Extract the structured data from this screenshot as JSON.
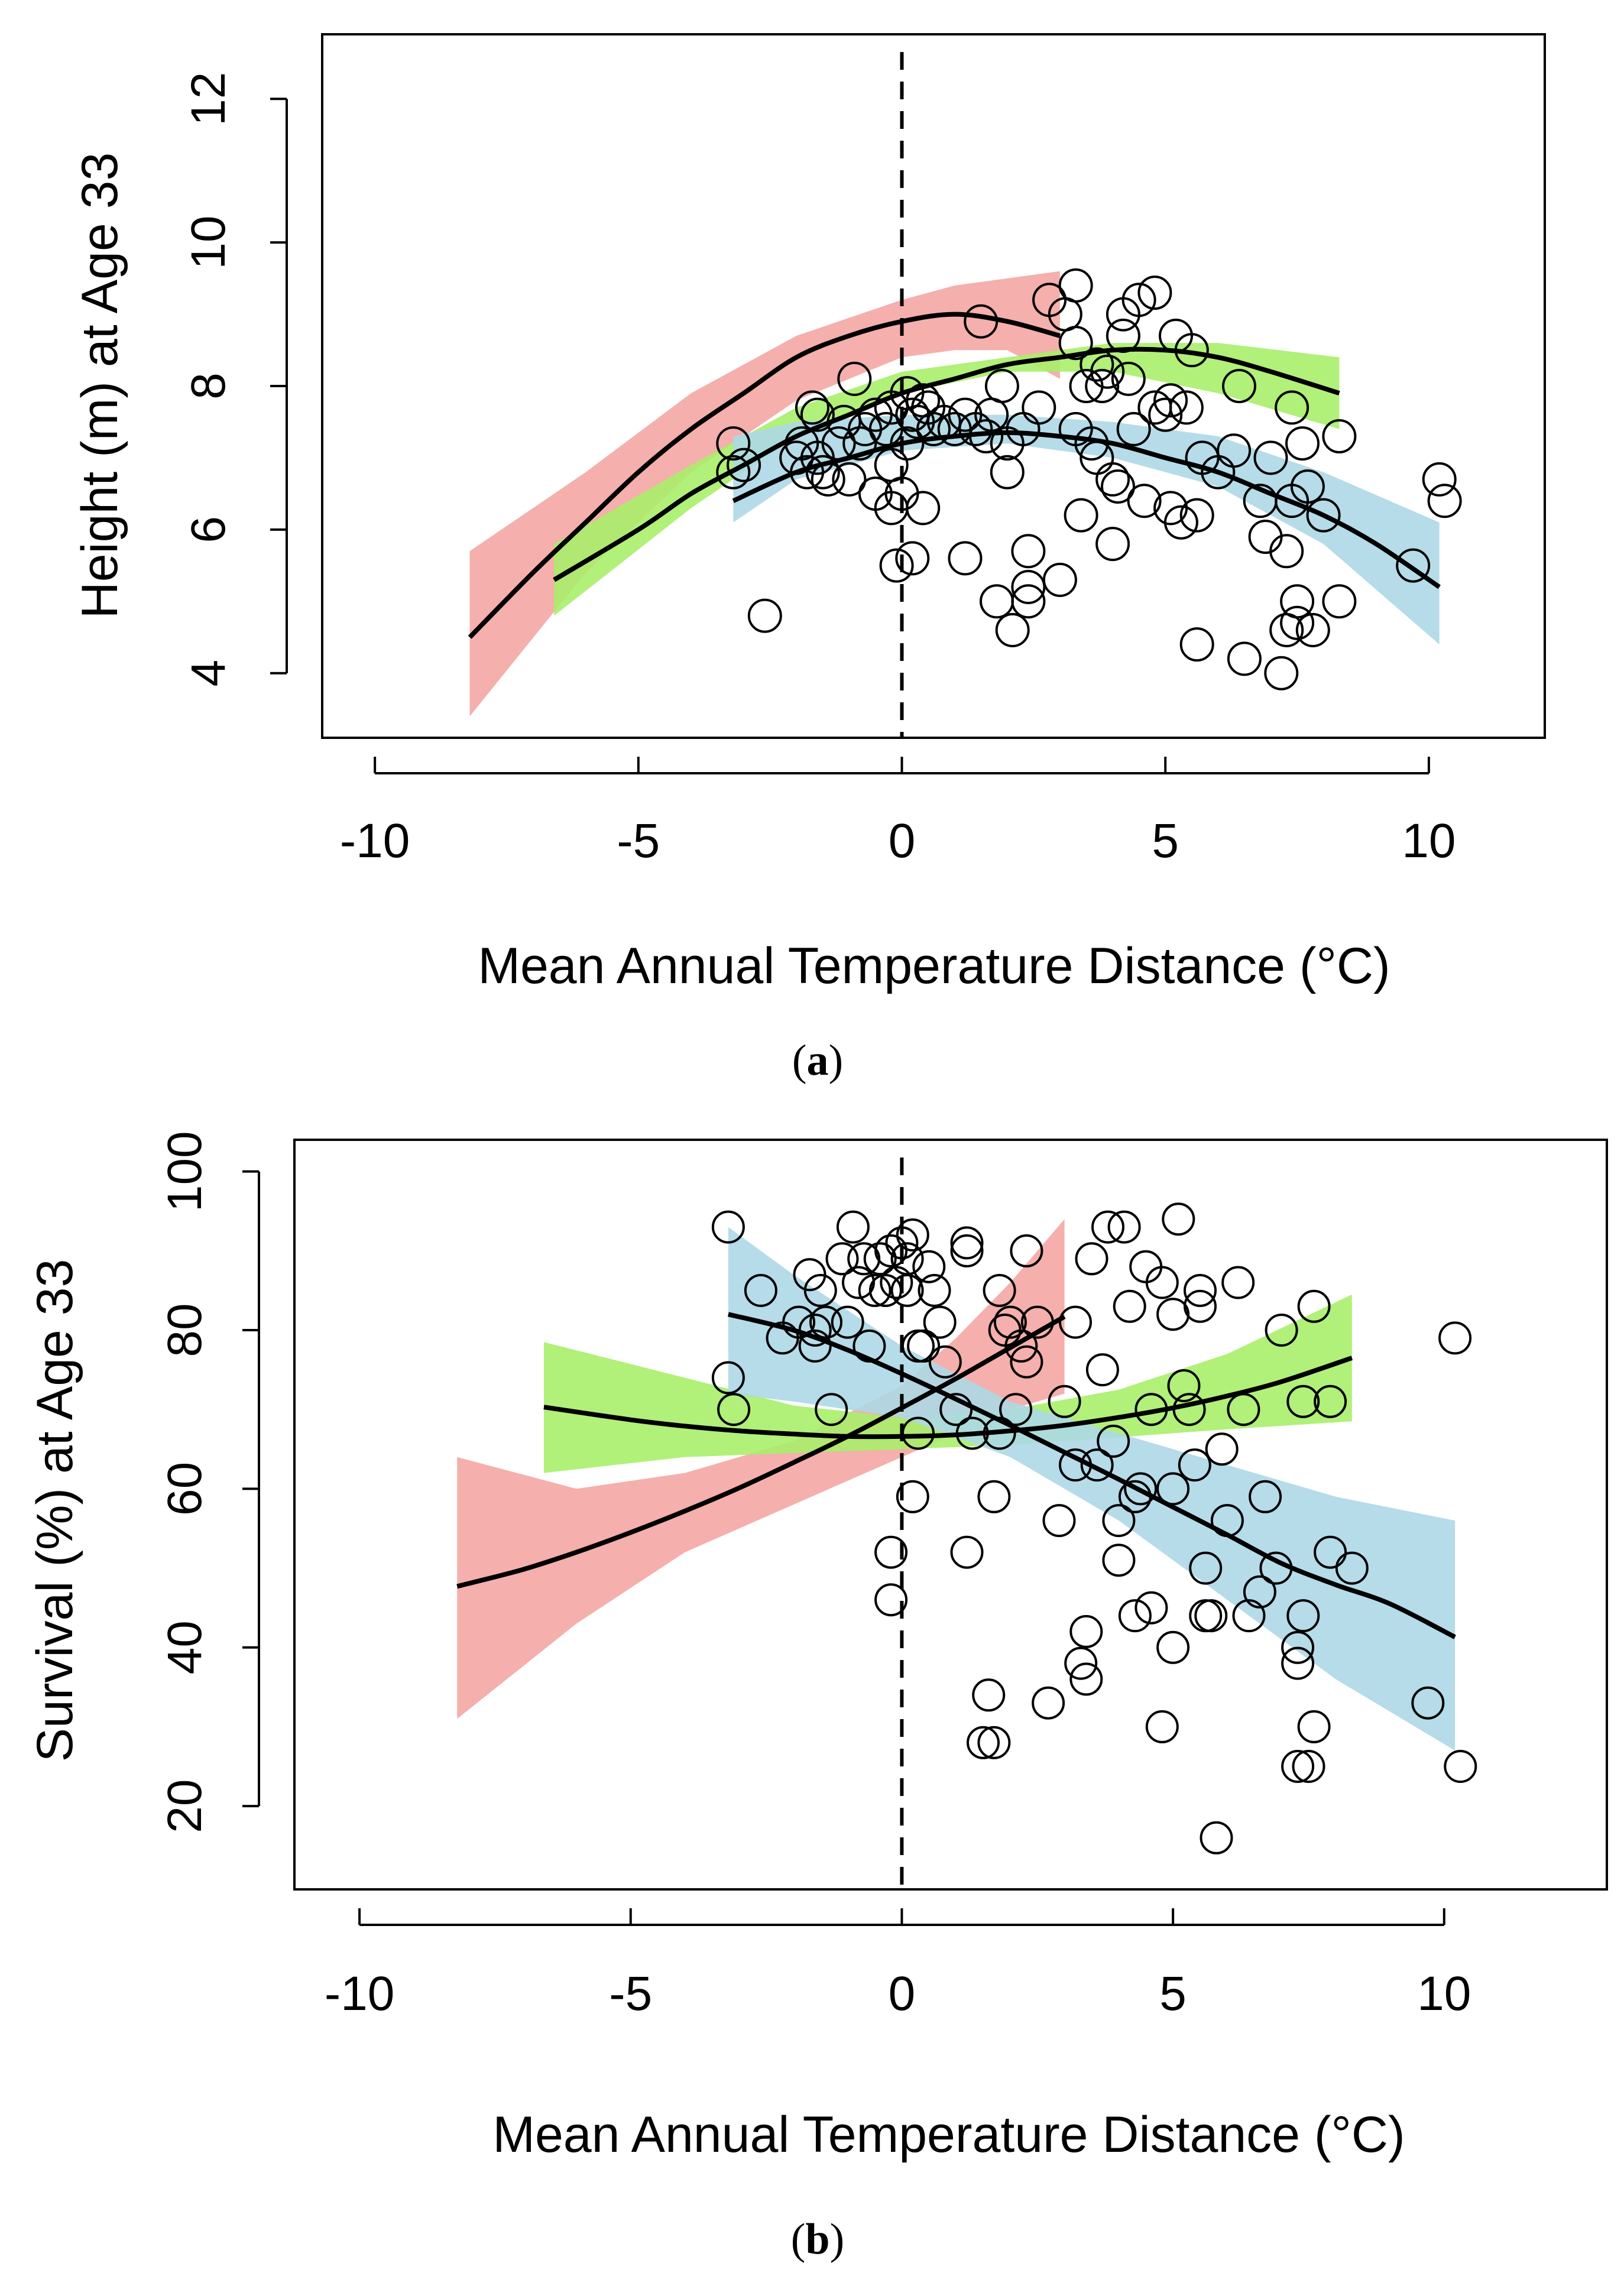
{
  "chart_data": [
    {
      "id": "a",
      "type": "scatter",
      "panel_label": "a",
      "xlabel": "Mean Annual Temperature Distance (°C)",
      "ylabel": "Height (m) at Age 33",
      "xlim": [
        -11,
        12.2
      ],
      "ylim": [
        3.1,
        12.9
      ],
      "xticks": [
        -10,
        -5,
        0,
        5,
        10
      ],
      "yticks": [
        4,
        6,
        8,
        10,
        12
      ],
      "reference_x": 0,
      "bands": [
        {
          "name": "red",
          "color": "#f4a6a3",
          "x": [
            -8.2,
            -6,
            -4,
            -2,
            0,
            1,
            2,
            3
          ],
          "lower": [
            3.4,
            5.4,
            6.8,
            7.8,
            8.4,
            8.5,
            8.5,
            8.1
          ],
          "upper": [
            5.7,
            6.8,
            7.9,
            8.7,
            9.2,
            9.4,
            9.5,
            9.6
          ]
        },
        {
          "name": "green",
          "color": "#a9ee6a",
          "x": [
            -6.6,
            -4,
            -2,
            0,
            2,
            4,
            6,
            8.3
          ],
          "lower": [
            4.8,
            6.3,
            7.3,
            7.9,
            8.2,
            8.2,
            7.9,
            7.4
          ],
          "upper": [
            5.8,
            6.9,
            7.7,
            8.2,
            8.4,
            8.6,
            8.6,
            8.4
          ]
        },
        {
          "name": "blue",
          "color": "#add8e6",
          "x": [
            -3.2,
            -2,
            0,
            2,
            4,
            6,
            8,
            10.2
          ],
          "lower": [
            6.1,
            6.7,
            7.1,
            7.2,
            7.0,
            6.6,
            5.8,
            4.4
          ],
          "upper": [
            7.3,
            7.5,
            7.6,
            7.6,
            7.5,
            7.3,
            6.8,
            6.1
          ]
        }
      ],
      "fits": [
        {
          "name": "red-fit",
          "x": [
            -8.2,
            -7,
            -6,
            -5,
            -4,
            -3,
            -2,
            -1,
            0,
            1,
            2,
            3
          ],
          "y": [
            4.5,
            5.4,
            6.1,
            6.8,
            7.4,
            7.9,
            8.4,
            8.7,
            8.9,
            9.0,
            8.9,
            8.7
          ]
        },
        {
          "name": "green-fit",
          "x": [
            -6.6,
            -5,
            -4,
            -3,
            -2,
            -1,
            0,
            1,
            2,
            3,
            4,
            5,
            6,
            7,
            8.3
          ],
          "y": [
            5.3,
            6.0,
            6.5,
            6.9,
            7.3,
            7.6,
            7.9,
            8.1,
            8.3,
            8.4,
            8.5,
            8.5,
            8.4,
            8.2,
            7.9
          ]
        },
        {
          "name": "blue-fit",
          "x": [
            -3.2,
            -2,
            -1,
            0,
            1,
            2,
            3,
            4,
            5,
            6,
            7,
            8,
            9,
            10.2
          ],
          "y": [
            6.4,
            6.8,
            7.0,
            7.2,
            7.3,
            7.35,
            7.3,
            7.2,
            7.0,
            6.8,
            6.5,
            6.2,
            5.8,
            5.2
          ]
        }
      ],
      "points": [
        [
          -2.6,
          4.8
        ],
        [
          -3.2,
          7.2
        ],
        [
          -3.2,
          6.8
        ],
        [
          -3.0,
          6.9
        ],
        [
          -2.0,
          7.0
        ],
        [
          -1.9,
          7.2
        ],
        [
          -1.8,
          6.8
        ],
        [
          -1.7,
          7.7
        ],
        [
          -1.6,
          7.6
        ],
        [
          -1.6,
          7.0
        ],
        [
          -1.5,
          6.8
        ],
        [
          -1.4,
          6.7
        ],
        [
          -1.2,
          7.2
        ],
        [
          -1.1,
          7.5
        ],
        [
          -1.0,
          6.7
        ],
        [
          -0.9,
          8.1
        ],
        [
          -0.8,
          7.2
        ],
        [
          -0.7,
          7.4
        ],
        [
          -0.5,
          7.6
        ],
        [
          -0.5,
          6.5
        ],
        [
          -0.3,
          7.4
        ],
        [
          -0.2,
          7.7
        ],
        [
          -0.2,
          6.9
        ],
        [
          -0.2,
          6.3
        ],
        [
          -0.1,
          5.5
        ],
        [
          0,
          6.5
        ],
        [
          0.1,
          7.9
        ],
        [
          0.1,
          7.2
        ],
        [
          0.2,
          7.6
        ],
        [
          0.2,
          5.6
        ],
        [
          0.3,
          7.5
        ],
        [
          0.4,
          7.8
        ],
        [
          0.4,
          6.3
        ],
        [
          0.5,
          7.7
        ],
        [
          0.6,
          7.4
        ],
        [
          0.8,
          7.5
        ],
        [
          1.0,
          7.4
        ],
        [
          1.2,
          7.6
        ],
        [
          1.2,
          5.6
        ],
        [
          1.4,
          7.4
        ],
        [
          1.5,
          8.9
        ],
        [
          1.6,
          7.3
        ],
        [
          1.7,
          7.6
        ],
        [
          1.8,
          5.0
        ],
        [
          1.9,
          8.0
        ],
        [
          2.0,
          7.2
        ],
        [
          2.0,
          6.8
        ],
        [
          2.1,
          4.6
        ],
        [
          2.3,
          7.4
        ],
        [
          2.4,
          5.0
        ],
        [
          2.4,
          5.2
        ],
        [
          2.4,
          5.7
        ],
        [
          2.6,
          7.7
        ],
        [
          2.8,
          9.2
        ],
        [
          3.0,
          5.3
        ],
        [
          3.1,
          9.0
        ],
        [
          3.3,
          9.4
        ],
        [
          3.3,
          8.6
        ],
        [
          3.3,
          7.4
        ],
        [
          3.4,
          6.2
        ],
        [
          3.5,
          8.0
        ],
        [
          3.6,
          7.2
        ],
        [
          3.7,
          8.3
        ],
        [
          3.7,
          7.0
        ],
        [
          3.8,
          8.0
        ],
        [
          3.9,
          8.2
        ],
        [
          4.0,
          5.8
        ],
        [
          4.0,
          6.7
        ],
        [
          4.1,
          6.6
        ],
        [
          4.2,
          9.0
        ],
        [
          4.2,
          8.7
        ],
        [
          4.3,
          8.1
        ],
        [
          4.4,
          7.4
        ],
        [
          4.5,
          9.2
        ],
        [
          4.6,
          6.4
        ],
        [
          4.8,
          9.3
        ],
        [
          4.8,
          7.7
        ],
        [
          5.0,
          7.6
        ],
        [
          5.1,
          6.3
        ],
        [
          5.1,
          7.8
        ],
        [
          5.2,
          8.7
        ],
        [
          5.3,
          6.1
        ],
        [
          5.4,
          7.7
        ],
        [
          5.5,
          8.5
        ],
        [
          5.6,
          6.2
        ],
        [
          5.6,
          4.4
        ],
        [
          5.7,
          7.0
        ],
        [
          6.0,
          6.8
        ],
        [
          6.3,
          7.1
        ],
        [
          6.4,
          8.0
        ],
        [
          6.5,
          4.2
        ],
        [
          6.8,
          6.4
        ],
        [
          6.9,
          5.9
        ],
        [
          7.0,
          7.0
        ],
        [
          7.2,
          4.0
        ],
        [
          7.3,
          5.7
        ],
        [
          7.3,
          4.6
        ],
        [
          7.4,
          7.7
        ],
        [
          7.4,
          6.4
        ],
        [
          7.5,
          5.0
        ],
        [
          7.5,
          4.7
        ],
        [
          7.6,
          7.2
        ],
        [
          7.7,
          6.6
        ],
        [
          7.8,
          4.6
        ],
        [
          8.0,
          6.2
        ],
        [
          8.3,
          7.3
        ],
        [
          8.3,
          5.0
        ],
        [
          9.7,
          5.5
        ],
        [
          10.2,
          6.7
        ],
        [
          10.3,
          6.4
        ]
      ]
    },
    {
      "id": "b",
      "type": "scatter",
      "panel_label": "b",
      "xlabel": "Mean Annual Temperature Distance (°C)",
      "ylabel": "Survival (%) at Age 33",
      "xlim": [
        -11.2,
        13
      ],
      "ylim": [
        9.5,
        104
      ],
      "xticks": [
        -10,
        -5,
        0,
        5,
        10
      ],
      "yticks": [
        20,
        40,
        60,
        80,
        100
      ],
      "reference_x": 0,
      "bands": [
        {
          "name": "red",
          "color": "#f4a6a3",
          "x": [
            -8.2,
            -6,
            -4,
            -2,
            0,
            1,
            2,
            3
          ],
          "lower": [
            31,
            43,
            52,
            58,
            64,
            67,
            70,
            72
          ],
          "upper": [
            64,
            60,
            62,
            66,
            73,
            79,
            86,
            94
          ]
        },
        {
          "name": "green",
          "color": "#a9ee6a",
          "x": [
            -6.6,
            -4,
            -2,
            0,
            2,
            4,
            6,
            8.3
          ],
          "lower": [
            62,
            64,
            64.5,
            65,
            65.5,
            66.5,
            67.5,
            68.5
          ],
          "upper": [
            78.5,
            74,
            70.5,
            69,
            70,
            72.5,
            77,
            84.5
          ]
        },
        {
          "name": "blue",
          "color": "#add8e6",
          "x": [
            -3.2,
            -2,
            0,
            2,
            4,
            6,
            8,
            10.2
          ],
          "lower": [
            72,
            71,
            69,
            64,
            56,
            46,
            36,
            27
          ],
          "upper": [
            93,
            87,
            78,
            71,
            67,
            63,
            59,
            56
          ]
        }
      ],
      "fits": [
        {
          "name": "red-fit",
          "x": [
            -8.2,
            -7,
            -6,
            -5,
            -4,
            -3,
            -2,
            -1,
            0,
            1,
            2,
            3
          ],
          "y": [
            47.7,
            49.8,
            52.0,
            54.5,
            57.2,
            60.1,
            63.3,
            66.6,
            70.2,
            73.9,
            77.8,
            81.7
          ]
        },
        {
          "name": "green-fit",
          "x": [
            -6.6,
            -5,
            -4,
            -3,
            -2,
            -1,
            0,
            1,
            2,
            3,
            4,
            5,
            6,
            7,
            8.3
          ],
          "y": [
            70.3,
            68.7,
            67.9,
            67.3,
            66.9,
            66.6,
            66.6,
            66.8,
            67.3,
            68.0,
            69.0,
            70.2,
            71.7,
            73.5,
            76.5
          ]
        },
        {
          "name": "blue-fit",
          "x": [
            -3.2,
            -2,
            -1,
            0,
            1,
            2,
            3,
            4,
            5,
            6,
            7,
            8,
            9,
            10.2
          ],
          "y": [
            82.0,
            80.0,
            77.5,
            74.5,
            71.3,
            68.0,
            64.6,
            61.2,
            57.7,
            54.2,
            50.6,
            47.9,
            45.5,
            41.3
          ]
        }
      ],
      "points": [
        [
          -3.2,
          93
        ],
        [
          -3.2,
          74
        ],
        [
          -3.1,
          70
        ],
        [
          -2.6,
          85
        ],
        [
          -2.2,
          79
        ],
        [
          -1.9,
          81
        ],
        [
          -1.7,
          87
        ],
        [
          -1.6,
          80
        ],
        [
          -1.6,
          78
        ],
        [
          -1.5,
          85
        ],
        [
          -1.4,
          81
        ],
        [
          -1.3,
          70
        ],
        [
          -1.1,
          89
        ],
        [
          -1.0,
          81
        ],
        [
          -0.9,
          93
        ],
        [
          -0.8,
          86
        ],
        [
          -0.7,
          89
        ],
        [
          -0.6,
          78
        ],
        [
          -0.5,
          85
        ],
        [
          -0.4,
          89
        ],
        [
          -0.3,
          85
        ],
        [
          -0.2,
          90
        ],
        [
          -0.2,
          52
        ],
        [
          -0.2,
          46
        ],
        [
          -0.1,
          86
        ],
        [
          0,
          91
        ],
        [
          0.1,
          89
        ],
        [
          0.1,
          85
        ],
        [
          0.2,
          92
        ],
        [
          0.2,
          59
        ],
        [
          0.3,
          67
        ],
        [
          0.3,
          78
        ],
        [
          0.4,
          78
        ],
        [
          0.5,
          88
        ],
        [
          0.6,
          85
        ],
        [
          0.7,
          81
        ],
        [
          0.8,
          76
        ],
        [
          1.0,
          70
        ],
        [
          1.2,
          91
        ],
        [
          1.2,
          90
        ],
        [
          1.2,
          52
        ],
        [
          1.3,
          67
        ],
        [
          1.5,
          28
        ],
        [
          1.6,
          34
        ],
        [
          1.7,
          28
        ],
        [
          1.7,
          59
        ],
        [
          1.8,
          67
        ],
        [
          1.8,
          85
        ],
        [
          1.9,
          80
        ],
        [
          2.0,
          81
        ],
        [
          2.1,
          70
        ],
        [
          2.2,
          78
        ],
        [
          2.3,
          76
        ],
        [
          2.3,
          90
        ],
        [
          2.5,
          81
        ],
        [
          2.7,
          33
        ],
        [
          2.9,
          56
        ],
        [
          3.0,
          71
        ],
        [
          3.2,
          81
        ],
        [
          3.2,
          63
        ],
        [
          3.3,
          38
        ],
        [
          3.4,
          42
        ],
        [
          3.4,
          36
        ],
        [
          3.5,
          89
        ],
        [
          3.6,
          63
        ],
        [
          3.7,
          75
        ],
        [
          3.8,
          93
        ],
        [
          3.9,
          66
        ],
        [
          4.0,
          56
        ],
        [
          4.0,
          51
        ],
        [
          4.1,
          93
        ],
        [
          4.2,
          83
        ],
        [
          4.3,
          44
        ],
        [
          4.3,
          59
        ],
        [
          4.4,
          60
        ],
        [
          4.5,
          88
        ],
        [
          4.6,
          70
        ],
        [
          4.6,
          45
        ],
        [
          4.8,
          30
        ],
        [
          4.8,
          86
        ],
        [
          5.0,
          82
        ],
        [
          5.0,
          60
        ],
        [
          5.0,
          40
        ],
        [
          5.1,
          94
        ],
        [
          5.2,
          73
        ],
        [
          5.3,
          70
        ],
        [
          5.4,
          63
        ],
        [
          5.5,
          83
        ],
        [
          5.5,
          85
        ],
        [
          5.6,
          50
        ],
        [
          5.6,
          44
        ],
        [
          5.7,
          44
        ],
        [
          5.8,
          16
        ],
        [
          5.9,
          65
        ],
        [
          6.0,
          56
        ],
        [
          6.2,
          86
        ],
        [
          6.3,
          70
        ],
        [
          6.4,
          44
        ],
        [
          6.6,
          47
        ],
        [
          6.7,
          59
        ],
        [
          6.9,
          50
        ],
        [
          7.0,
          80
        ],
        [
          7.3,
          25
        ],
        [
          7.3,
          38
        ],
        [
          7.3,
          40
        ],
        [
          7.4,
          44
        ],
        [
          7.4,
          71
        ],
        [
          7.5,
          25
        ],
        [
          7.6,
          30
        ],
        [
          7.6,
          83
        ],
        [
          7.9,
          71
        ],
        [
          7.9,
          52
        ],
        [
          8.3,
          50
        ],
        [
          9.7,
          33
        ],
        [
          10.2,
          79
        ],
        [
          10.3,
          25
        ]
      ]
    }
  ]
}
